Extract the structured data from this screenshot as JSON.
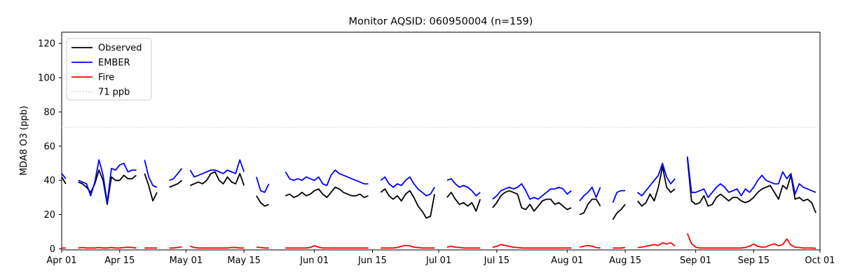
{
  "figure": {
    "title": "Monitor AQSID: 060950004 (n=159)",
    "ylabel": "MDA8 O3 (ppb)"
  },
  "chart_data": {
    "type": "line",
    "title": "Monitor AQSID: 060950004 (n=159)",
    "xlabel": "",
    "ylabel": "MDA8 O3 (ppb)",
    "n_points": 159,
    "grid": false,
    "legend_position": "upper left",
    "ylim": [
      -1,
      127
    ],
    "y_ticks": [
      0,
      20,
      40,
      60,
      80,
      100,
      120
    ],
    "x_unit": "days since Apr 01",
    "x_range_days": 183,
    "x_ticks": [
      {
        "day": 0,
        "label": "Apr 01"
      },
      {
        "day": 14,
        "label": "Apr 15"
      },
      {
        "day": 30,
        "label": "May 01"
      },
      {
        "day": 44,
        "label": "May 15"
      },
      {
        "day": 61,
        "label": "Jun 01"
      },
      {
        "day": 75,
        "label": "Jun 15"
      },
      {
        "day": 91,
        "label": "Jul 01"
      },
      {
        "day": 105,
        "label": "Jul 15"
      },
      {
        "day": 122,
        "label": "Aug 01"
      },
      {
        "day": 136,
        "label": "Aug 15"
      },
      {
        "day": 153,
        "label": "Sep 01"
      },
      {
        "day": 167,
        "label": "Sep 15"
      },
      {
        "day": 183,
        "label": "Oct 01"
      }
    ],
    "threshold": {
      "label": "71 ppb",
      "value": 71,
      "color": "#d3d3d3",
      "style": "dotted"
    },
    "series": [
      {
        "name": "Observed",
        "color": "#000000",
        "values": [
          42,
          38,
          null,
          null,
          39,
          38,
          36,
          33,
          38,
          46,
          40,
          26,
          42,
          40,
          40,
          43,
          41,
          41,
          43,
          null,
          44,
          37,
          28,
          33,
          null,
          null,
          36,
          37,
          38,
          40,
          null,
          37,
          38,
          39,
          38,
          40,
          44,
          45,
          40,
          38,
          42,
          39,
          38,
          44,
          37,
          null,
          null,
          31,
          27,
          25,
          26,
          null,
          null,
          null,
          31,
          32,
          30,
          31,
          33,
          31,
          32,
          34,
          35,
          32,
          30,
          33,
          36,
          35,
          33,
          32,
          31,
          31,
          32,
          30,
          31,
          null,
          null,
          33,
          35,
          31,
          29,
          31,
          28,
          32,
          34,
          30,
          25,
          22,
          18,
          19,
          32,
          null,
          null,
          30,
          33,
          29,
          26,
          27,
          25,
          27,
          22,
          29,
          null,
          null,
          24,
          27,
          31,
          33,
          34,
          33,
          32,
          24,
          23,
          26,
          22,
          25,
          28,
          29,
          29,
          26,
          27,
          25,
          23,
          24,
          null,
          20,
          21,
          26,
          29,
          29,
          25,
          null,
          null,
          17,
          21,
          23,
          26,
          null,
          null,
          28,
          25,
          27,
          32,
          28,
          36,
          48,
          36,
          33,
          35,
          null,
          null,
          53,
          28,
          26,
          27,
          31,
          25,
          26,
          30,
          32,
          30,
          28,
          30,
          30,
          28,
          27,
          28,
          30,
          33,
          35,
          36,
          37,
          33,
          29,
          37,
          35,
          43,
          29,
          30,
          28,
          29,
          27,
          21
        ]
      },
      {
        "name": "EMBER",
        "color": "#0000ff",
        "values": [
          44,
          41,
          null,
          null,
          40,
          39,
          38,
          31,
          39,
          52,
          43,
          27,
          47,
          46,
          49,
          50,
          45,
          46,
          46,
          null,
          52,
          42,
          37,
          36,
          null,
          null,
          40,
          41,
          44,
          47,
          null,
          46,
          42,
          43,
          44,
          45,
          46,
          46,
          45,
          44,
          46,
          45,
          44,
          52,
          45,
          null,
          null,
          42,
          34,
          33,
          38,
          null,
          null,
          null,
          45,
          41,
          40,
          41,
          40,
          42,
          41,
          40,
          42,
          38,
          37,
          43,
          46,
          44,
          43,
          42,
          41,
          40,
          39,
          38,
          38,
          null,
          null,
          40,
          42,
          38,
          36,
          38,
          37,
          40,
          42,
          38,
          35,
          33,
          31,
          32,
          36,
          null,
          null,
          40,
          41,
          38,
          36,
          37,
          36,
          34,
          31,
          33,
          null,
          null,
          29,
          31,
          34,
          35,
          36,
          35,
          36,
          38,
          34,
          29,
          30,
          29,
          31,
          33,
          35,
          35,
          36,
          35,
          32,
          34,
          null,
          28,
          31,
          33,
          36,
          30,
          36,
          null,
          null,
          27,
          33,
          34,
          34,
          null,
          null,
          33,
          31,
          34,
          37,
          40,
          43,
          50,
          42,
          38,
          41,
          null,
          null,
          54,
          33,
          33,
          34,
          35,
          30,
          33,
          36,
          38,
          36,
          33,
          34,
          35,
          31,
          35,
          33,
          36,
          40,
          43,
          40,
          39,
          38,
          38,
          45,
          41,
          44,
          32,
          38,
          36,
          35,
          34,
          33
        ]
      },
      {
        "name": "Fire",
        "color": "#ff0000",
        "values": [
          0.5,
          0.5,
          null,
          null,
          0.5,
          0.8,
          0.5,
          0.5,
          0.5,
          0.8,
          0.5,
          0.5,
          0.8,
          0.5,
          0.5,
          0.8,
          1,
          0.8,
          0.5,
          null,
          0.5,
          0.5,
          0.5,
          0.5,
          null,
          null,
          0.5,
          0.5,
          0.8,
          1.2,
          null,
          1.5,
          0.8,
          0.5,
          0.5,
          0.5,
          0.5,
          0.5,
          0.5,
          0.5,
          0.5,
          0.8,
          0.8,
          0.5,
          0.5,
          null,
          null,
          1,
          0.8,
          0.5,
          0.5,
          null,
          null,
          null,
          0.5,
          0.5,
          0.5,
          0.5,
          0.5,
          0.5,
          0.8,
          1.8,
          1,
          0.5,
          0.5,
          0.5,
          0.5,
          0.5,
          0.5,
          0.5,
          0.5,
          0.5,
          0.5,
          0.5,
          0.5,
          null,
          null,
          0.5,
          0.5,
          0.5,
          0.5,
          0.8,
          1.5,
          2,
          1.8,
          1,
          0.8,
          0.5,
          0.5,
          0.5,
          0.5,
          null,
          null,
          1,
          1.5,
          1,
          0.8,
          0.5,
          0.5,
          0.5,
          0.5,
          0.5,
          null,
          null,
          0.8,
          1.5,
          2.5,
          2,
          1.5,
          1,
          0.8,
          0.5,
          0.5,
          0.5,
          0.5,
          0.5,
          0.5,
          0.5,
          0.5,
          0.5,
          0.5,
          0.5,
          0.5,
          0.5,
          null,
          1,
          1.5,
          2,
          1.5,
          0.8,
          0.5,
          null,
          null,
          0.5,
          0.5,
          0.5,
          0.8,
          null,
          null,
          0.8,
          1,
          1.5,
          2,
          2.5,
          2,
          3.5,
          2.8,
          3.6,
          1.6,
          null,
          null,
          9,
          3,
          1,
          0.5,
          0.5,
          0.5,
          0.5,
          0.5,
          0.5,
          0.5,
          0.5,
          0.5,
          0.5,
          0.5,
          0.8,
          1.5,
          2.8,
          1.5,
          1,
          1.2,
          2.2,
          3,
          1.8,
          2.5,
          5.8,
          2.2,
          1,
          0.8,
          0.5,
          0.5,
          0.5,
          0.3
        ]
      }
    ],
    "legend_entries": [
      "Observed",
      "EMBER",
      "Fire",
      "71 ppb"
    ]
  }
}
